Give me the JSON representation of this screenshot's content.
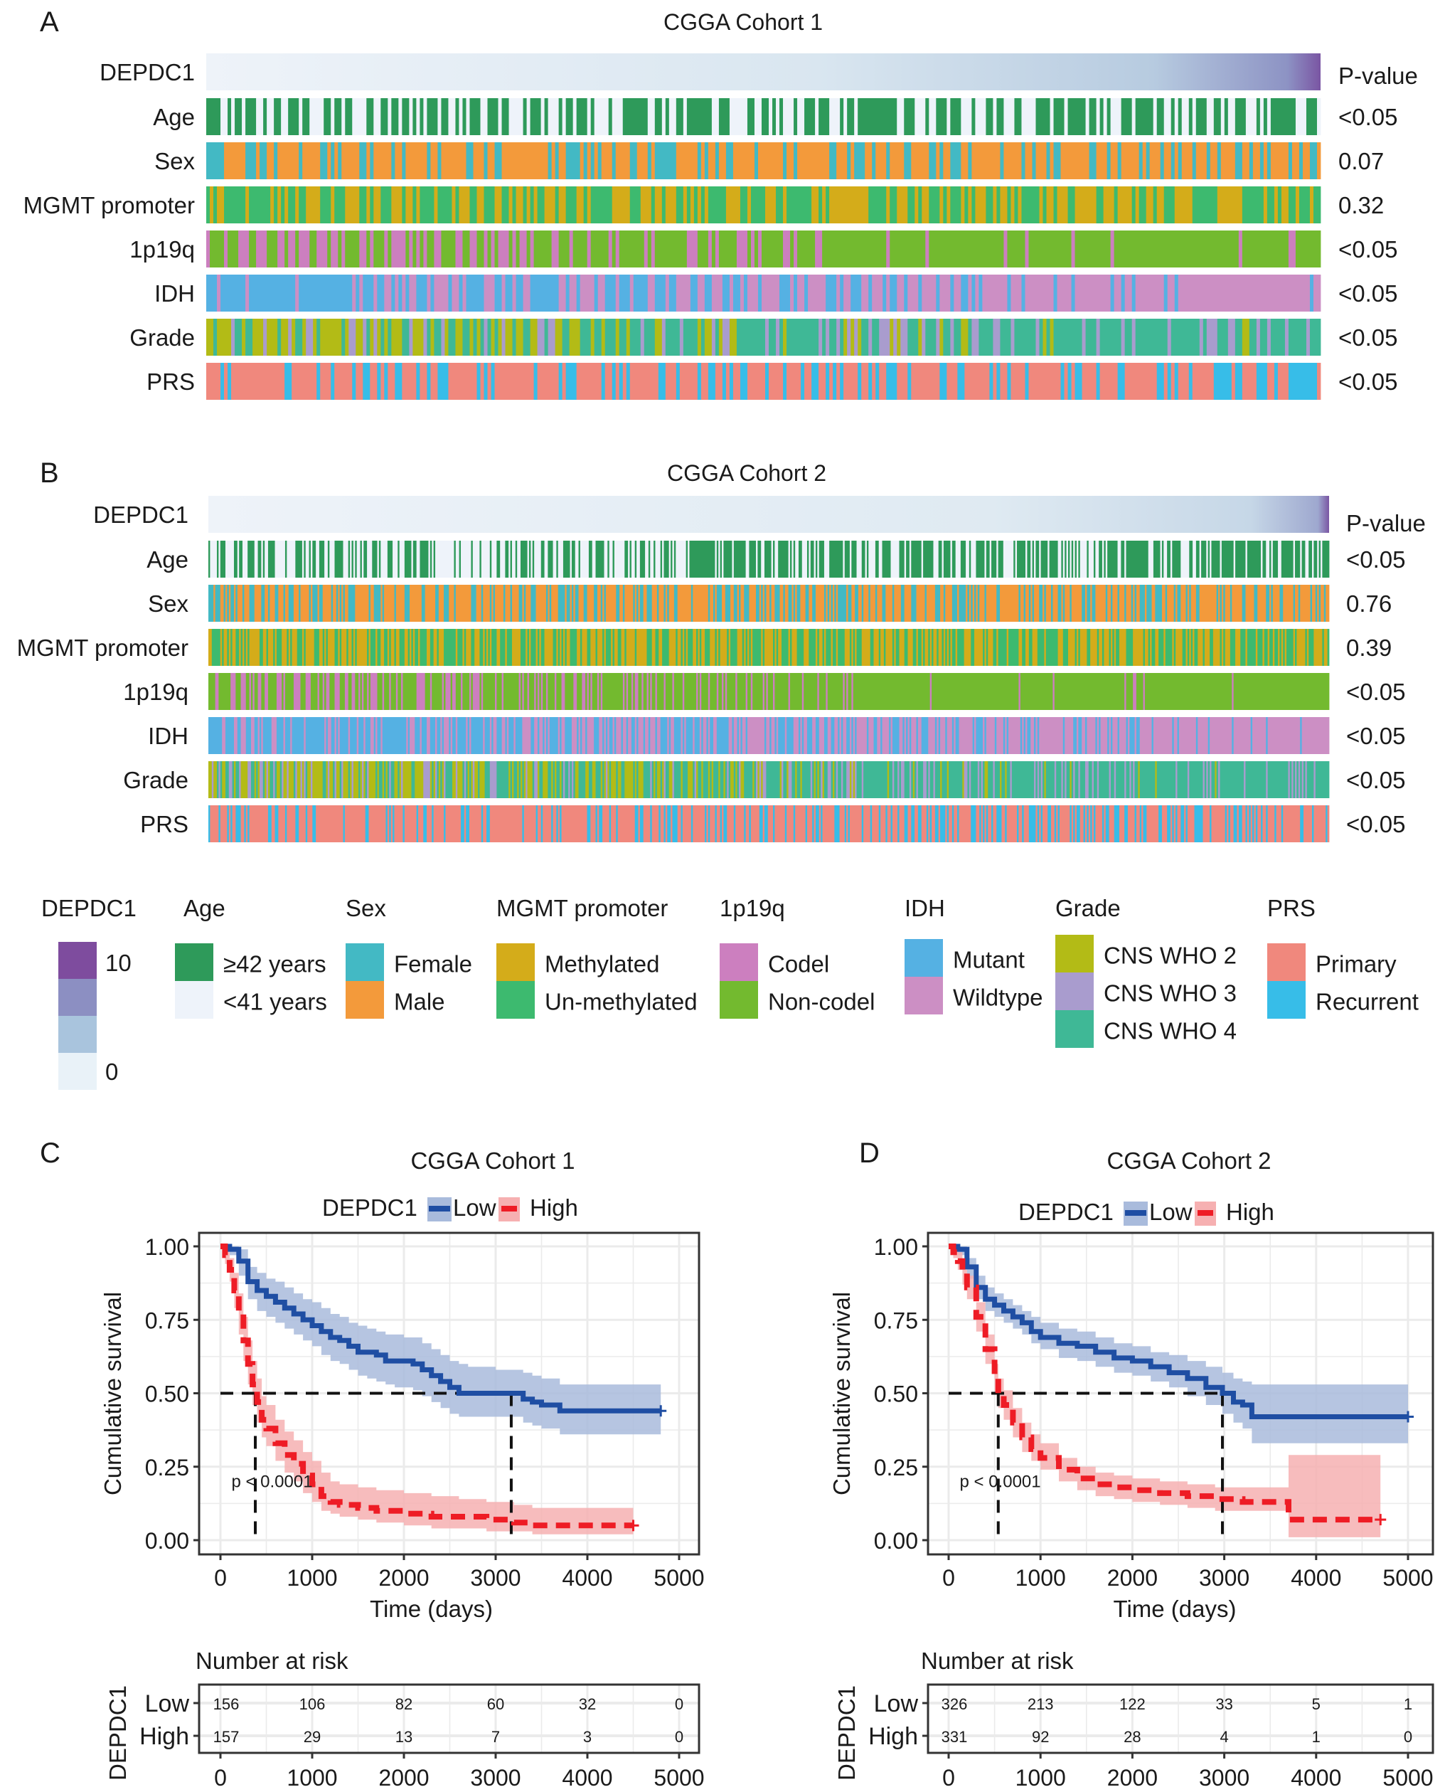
{
  "figure": {
    "panel_labels": [
      "A",
      "B",
      "C",
      "D"
    ]
  },
  "heatmaps": [
    {
      "panel": "A",
      "title": "CGGA Cohort 1",
      "pvalue_header": "P-value",
      "rows": [
        {
          "label": "DEPDC1",
          "pvalue": ""
        },
        {
          "label": "Age",
          "pvalue": "<0.05"
        },
        {
          "label": "Sex",
          "pvalue": "0.07"
        },
        {
          "label": "MGMT promoter",
          "pvalue": "0.32"
        },
        {
          "label": "1p19q",
          "pvalue": "<0.05"
        },
        {
          "label": "IDH",
          "pvalue": "<0.05"
        },
        {
          "label": "Grade",
          "pvalue": "<0.05"
        },
        {
          "label": "PRS",
          "pvalue": "<0.05"
        }
      ]
    },
    {
      "panel": "B",
      "title": "CGGA Cohort 2",
      "pvalue_header": "P-value",
      "rows": [
        {
          "label": "DEPDC1",
          "pvalue": ""
        },
        {
          "label": "Age",
          "pvalue": "<0.05"
        },
        {
          "label": "Sex",
          "pvalue": "0.76"
        },
        {
          "label": "MGMT promoter",
          "pvalue": "0.39"
        },
        {
          "label": "1p19q",
          "pvalue": "<0.05"
        },
        {
          "label": "IDH",
          "pvalue": "<0.05"
        },
        {
          "label": "Grade",
          "pvalue": "<0.05"
        },
        {
          "label": "PRS",
          "pvalue": "<0.05"
        }
      ]
    }
  ],
  "legend": {
    "groups": [
      {
        "title": "DEPDC1",
        "type": "gradient",
        "max_label": "10",
        "min_label": "0",
        "colors": [
          "#7e4c9e",
          "#8c8fc2",
          "#a9c4dd",
          "#e9f2f8"
        ]
      },
      {
        "title": "Age",
        "items": [
          {
            "label": "≥42 years",
            "color": "#2e9a5a"
          },
          {
            "label": "<41 years",
            "color": "#eef3fa"
          }
        ]
      },
      {
        "title": "Sex",
        "items": [
          {
            "label": "Female",
            "color": "#43b9c4"
          },
          {
            "label": "Male",
            "color": "#f39a3b"
          }
        ]
      },
      {
        "title": "MGMT promoter",
        "items": [
          {
            "label": "Methylated",
            "color": "#d4ac1a"
          },
          {
            "label": "Un-methylated",
            "color": "#3dba6f"
          }
        ]
      },
      {
        "title": "1p19q",
        "items": [
          {
            "label": "Codel",
            "color": "#cc7fbf"
          },
          {
            "label": "Non-codel",
            "color": "#73ba2f"
          }
        ]
      },
      {
        "title": "IDH",
        "items": [
          {
            "label": "Mutant",
            "color": "#55b1e3"
          },
          {
            "label": "Wildtype",
            "color": "#cc8fc4"
          }
        ]
      },
      {
        "title": "Grade",
        "items": [
          {
            "label": "CNS WHO 2",
            "color": "#b3bb16"
          },
          {
            "label": "CNS WHO 3",
            "color": "#a99cce"
          },
          {
            "label": "CNS WHO 4",
            "color": "#3fb896"
          }
        ]
      },
      {
        "title": "PRS",
        "items": [
          {
            "label": "Primary",
            "color": "#f0887d"
          },
          {
            "label": "Recurrent",
            "color": "#37bde8"
          }
        ]
      }
    ]
  },
  "colors": {
    "low": "#1f4ea3",
    "low_band": "#a9bbdc",
    "high": "#ee1c25",
    "high_band": "#f6b0b1",
    "median_line": "#111111",
    "grid": "#ebebeb"
  },
  "chart_data": [
    {
      "panel": "C",
      "type": "line",
      "title": "CGGA Cohort 1",
      "legend_title": "DEPDC1",
      "legend_entries": [
        "Low",
        "High"
      ],
      "xlabel": "Time (days)",
      "ylabel": "Cumulative survival",
      "xlim": [
        0,
        5000
      ],
      "ylim": [
        0,
        1
      ],
      "xticks": [
        "0",
        "1000",
        "2000",
        "3000",
        "4000",
        "5000"
      ],
      "yticks": [
        "0.00",
        "0.25",
        "0.50",
        "0.75",
        "1.00"
      ],
      "pvalue_text": "p < 0.0001",
      "median_survival": {
        "Low": 3170,
        "High": 380
      },
      "series": [
        {
          "name": "Low",
          "x": [
            0,
            100,
            200,
            300,
            400,
            500,
            600,
            700,
            800,
            900,
            1000,
            1100,
            1200,
            1300,
            1400,
            1500,
            1600,
            1700,
            1800,
            1900,
            2000,
            2100,
            2200,
            2300,
            2400,
            2500,
            2600,
            2700,
            2800,
            3000,
            3150,
            3300,
            3400,
            3500,
            3700,
            4000,
            4400,
            4800
          ],
          "y": [
            1.0,
            0.99,
            0.95,
            0.88,
            0.85,
            0.83,
            0.81,
            0.79,
            0.77,
            0.75,
            0.73,
            0.71,
            0.69,
            0.68,
            0.66,
            0.64,
            0.64,
            0.63,
            0.61,
            0.61,
            0.61,
            0.6,
            0.58,
            0.56,
            0.54,
            0.52,
            0.5,
            0.5,
            0.5,
            0.5,
            0.5,
            0.48,
            0.47,
            0.46,
            0.44,
            0.44,
            0.44,
            0.44
          ],
          "ci_upper": [
            1.0,
            1.0,
            0.99,
            0.93,
            0.91,
            0.89,
            0.88,
            0.86,
            0.84,
            0.82,
            0.81,
            0.79,
            0.77,
            0.76,
            0.74,
            0.73,
            0.72,
            0.71,
            0.7,
            0.7,
            0.69,
            0.69,
            0.67,
            0.65,
            0.63,
            0.61,
            0.6,
            0.59,
            0.59,
            0.58,
            0.58,
            0.57,
            0.56,
            0.55,
            0.53,
            0.53,
            0.53,
            0.53
          ],
          "ci_lower": [
            1.0,
            0.97,
            0.9,
            0.82,
            0.78,
            0.76,
            0.74,
            0.72,
            0.7,
            0.68,
            0.66,
            0.63,
            0.61,
            0.6,
            0.58,
            0.56,
            0.55,
            0.54,
            0.53,
            0.52,
            0.52,
            0.51,
            0.49,
            0.47,
            0.45,
            0.43,
            0.42,
            0.42,
            0.42,
            0.42,
            0.42,
            0.4,
            0.39,
            0.38,
            0.36,
            0.36,
            0.36,
            0.36
          ]
        },
        {
          "name": "High",
          "x": [
            0,
            50,
            100,
            150,
            200,
            250,
            300,
            350,
            400,
            450,
            500,
            600,
            700,
            800,
            900,
            1000,
            1100,
            1200,
            1300,
            1500,
            1700,
            2000,
            2300,
            2600,
            2900,
            3200,
            3400,
            3700,
            4000,
            4300,
            4500
          ],
          "y": [
            1.0,
            0.97,
            0.92,
            0.85,
            0.77,
            0.68,
            0.6,
            0.53,
            0.47,
            0.41,
            0.38,
            0.33,
            0.29,
            0.26,
            0.22,
            0.19,
            0.15,
            0.13,
            0.12,
            0.11,
            0.1,
            0.09,
            0.08,
            0.08,
            0.07,
            0.06,
            0.05,
            0.05,
            0.05,
            0.05,
            0.05
          ],
          "ci_upper": [
            1.0,
            1.0,
            0.96,
            0.91,
            0.84,
            0.76,
            0.68,
            0.61,
            0.55,
            0.49,
            0.46,
            0.41,
            0.37,
            0.34,
            0.3,
            0.27,
            0.23,
            0.2,
            0.19,
            0.18,
            0.17,
            0.16,
            0.15,
            0.14,
            0.13,
            0.12,
            0.11,
            0.11,
            0.11,
            0.11,
            0.11
          ],
          "ci_lower": [
            1.0,
            0.94,
            0.88,
            0.79,
            0.7,
            0.61,
            0.53,
            0.46,
            0.4,
            0.35,
            0.32,
            0.27,
            0.23,
            0.2,
            0.16,
            0.13,
            0.1,
            0.09,
            0.08,
            0.07,
            0.06,
            0.05,
            0.04,
            0.04,
            0.03,
            0.03,
            0.02,
            0.02,
            0.02,
            0.02,
            0.02
          ]
        }
      ],
      "risk_table": {
        "title": "Number at risk",
        "group_label": "DEPDC1",
        "times": [
          0,
          1000,
          2000,
          3000,
          4000,
          5000
        ],
        "rows": [
          {
            "name": "Low",
            "values": [
              156,
              106,
              82,
              60,
              32,
              0
            ]
          },
          {
            "name": "High",
            "values": [
              157,
              29,
              13,
              7,
              3,
              0
            ]
          }
        ]
      }
    },
    {
      "panel": "D",
      "type": "line",
      "title": "CGGA Cohort 2",
      "legend_title": "DEPDC1",
      "legend_entries": [
        "Low",
        "High"
      ],
      "xlabel": "Time (days)",
      "ylabel": "Cumulative survival",
      "xlim": [
        0,
        5000
      ],
      "ylim": [
        0,
        1
      ],
      "xticks": [
        "0",
        "1000",
        "2000",
        "3000",
        "4000",
        "5000"
      ],
      "yticks": [
        "0.00",
        "0.25",
        "0.50",
        "0.75",
        "1.00"
      ],
      "pvalue_text": "p < 0.0001",
      "median_survival": {
        "Low": 2980,
        "High": 540
      },
      "series": [
        {
          "name": "Low",
          "x": [
            0,
            100,
            200,
            300,
            400,
            500,
            600,
            700,
            800,
            900,
            1000,
            1200,
            1400,
            1600,
            1800,
            2000,
            2200,
            2400,
            2600,
            2800,
            2980,
            3100,
            3200,
            3300,
            3400,
            3600,
            4000,
            4500,
            5000
          ],
          "y": [
            1.0,
            0.99,
            0.93,
            0.86,
            0.82,
            0.8,
            0.78,
            0.76,
            0.74,
            0.71,
            0.69,
            0.67,
            0.66,
            0.64,
            0.62,
            0.61,
            0.59,
            0.57,
            0.55,
            0.52,
            0.5,
            0.47,
            0.46,
            0.42,
            0.42,
            0.42,
            0.42,
            0.42,
            0.42
          ],
          "ci_upper": [
            1.0,
            1.0,
            0.96,
            0.9,
            0.86,
            0.84,
            0.82,
            0.8,
            0.78,
            0.76,
            0.74,
            0.72,
            0.71,
            0.69,
            0.67,
            0.66,
            0.64,
            0.63,
            0.61,
            0.59,
            0.57,
            0.55,
            0.54,
            0.53,
            0.53,
            0.53,
            0.53,
            0.53,
            0.53
          ],
          "ci_lower": [
            1.0,
            0.97,
            0.89,
            0.82,
            0.78,
            0.76,
            0.74,
            0.72,
            0.7,
            0.67,
            0.65,
            0.62,
            0.61,
            0.59,
            0.57,
            0.56,
            0.54,
            0.52,
            0.49,
            0.46,
            0.43,
            0.4,
            0.38,
            0.33,
            0.33,
            0.33,
            0.33,
            0.33,
            0.33
          ]
        },
        {
          "name": "High",
          "x": [
            0,
            50,
            100,
            150,
            200,
            300,
            400,
            500,
            540,
            600,
            700,
            800,
            900,
            1000,
            1200,
            1400,
            1600,
            1800,
            2000,
            2300,
            2600,
            2900,
            3200,
            3500,
            3650,
            3700,
            4000,
            4300,
            4700
          ],
          "y": [
            1.0,
            0.98,
            0.95,
            0.91,
            0.86,
            0.76,
            0.65,
            0.55,
            0.5,
            0.46,
            0.4,
            0.35,
            0.31,
            0.28,
            0.24,
            0.21,
            0.19,
            0.18,
            0.17,
            0.16,
            0.15,
            0.14,
            0.13,
            0.13,
            0.13,
            0.07,
            0.07,
            0.07,
            0.07
          ],
          "ci_upper": [
            1.0,
            1.0,
            0.98,
            0.95,
            0.9,
            0.81,
            0.7,
            0.6,
            0.55,
            0.51,
            0.45,
            0.4,
            0.36,
            0.33,
            0.28,
            0.25,
            0.23,
            0.22,
            0.21,
            0.2,
            0.19,
            0.18,
            0.18,
            0.18,
            0.18,
            0.29,
            0.29,
            0.29,
            0.29
          ],
          "ci_lower": [
            1.0,
            0.96,
            0.92,
            0.87,
            0.82,
            0.71,
            0.6,
            0.5,
            0.45,
            0.41,
            0.35,
            0.3,
            0.27,
            0.24,
            0.2,
            0.17,
            0.15,
            0.14,
            0.13,
            0.12,
            0.11,
            0.1,
            0.1,
            0.1,
            0.1,
            0.01,
            0.01,
            0.01,
            0.01
          ]
        }
      ],
      "risk_table": {
        "title": "Number at risk",
        "group_label": "DEPDC1",
        "times": [
          0,
          1000,
          2000,
          3000,
          4000,
          5000
        ],
        "rows": [
          {
            "name": "Low",
            "values": [
              326,
              213,
              122,
              33,
              5,
              1
            ]
          },
          {
            "name": "High",
            "values": [
              331,
              92,
              28,
              4,
              1,
              0
            ]
          }
        ]
      }
    }
  ]
}
